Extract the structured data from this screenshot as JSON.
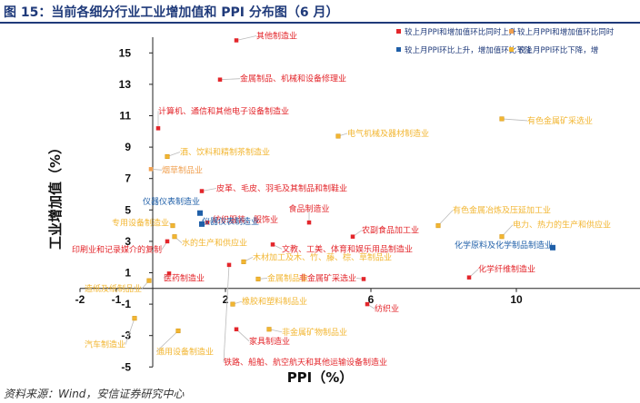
{
  "title": "图 15：当前各细分行业工业增加值和 PPI 分布图（6 月）",
  "source": "资料来源：Wind，安信证券研究中心",
  "chart_data": {
    "type": "scatter",
    "xlabel": "PPI（%）",
    "ylabel": "工业增加值（%）",
    "xlim": [
      -2,
      11
    ],
    "ylim": [
      -5,
      16
    ],
    "xticks": [
      -2,
      -1,
      2,
      6,
      10
    ],
    "yticks": [
      -5,
      -3,
      -1,
      1,
      3,
      5,
      7,
      9,
      11,
      13,
      15
    ],
    "legend_position": "top-right",
    "colors": {
      "red": "#e3262b",
      "orange": "#f0a050",
      "blue": "#1f5fa8",
      "yellow": "#f2b632",
      "leader": "#bbbbbb"
    },
    "series": [
      {
        "name": "较上月PPI和增加值环比同时上升",
        "color": "red"
      },
      {
        "name": "较上月PPI和增加值环比同时",
        "color": "orange"
      },
      {
        "name": "较上月PPI环比上升，增加值环比下降",
        "color": "blue"
      },
      {
        "name": "较上月PPI环比下降，增",
        "color": "yellow"
      }
    ],
    "points": [
      {
        "label": "其他制造业",
        "x": 2.3,
        "y": 15.8,
        "color": "red"
      },
      {
        "label": "金属制品、机械和设备修理业",
        "x": 1.85,
        "y": 13.3,
        "color": "red"
      },
      {
        "label": "计算机、通信和其他电子设备制造业",
        "x": 0.15,
        "y": 10.2,
        "color": "red"
      },
      {
        "label": "电气机械及器材制造业",
        "x": 5.1,
        "y": 9.7,
        "color": "yellow"
      },
      {
        "label": "有色金属矿采选业",
        "x": 9.6,
        "y": 10.8,
        "color": "yellow"
      },
      {
        "label": "酒、饮料和精制茶制造业",
        "x": 0.4,
        "y": 8.4,
        "color": "yellow"
      },
      {
        "label": "烟草制品业",
        "x": -0.05,
        "y": 7.6,
        "color": "orange"
      },
      {
        "label": "皮革、毛皮、羽毛及其制品和制鞋业",
        "x": 1.35,
        "y": 6.2,
        "color": "red"
      },
      {
        "label": "仪器仪表制造业",
        "x": 1.3,
        "y": 4.8,
        "color": "blue"
      },
      {
        "label": "纺织服装、服饰业",
        "x": 1.5,
        "y": 4.2,
        "color": "red"
      },
      {
        "label": "食品制造业",
        "x": 4.3,
        "y": 4.2,
        "color": "red"
      },
      {
        "label": "农副食品加工业",
        "x": 5.5,
        "y": 3.3,
        "color": "red"
      },
      {
        "label": "有色金属冶炼及压延加工业",
        "x": 7.85,
        "y": 4.0,
        "color": "yellow"
      },
      {
        "label": "电力、热力的生产和供应业",
        "x": 9.6,
        "y": 3.3,
        "color": "yellow"
      },
      {
        "label": "化学原料及化学制品制造业",
        "x": 11.0,
        "y": 2.6,
        "color": "blue"
      },
      {
        "label": "专用设备制造业",
        "x": 0.55,
        "y": 4.0,
        "color": "yellow"
      },
      {
        "label": "仪器仪表制造业",
        "x": 1.35,
        "y": 4.1,
        "color": "blue"
      },
      {
        "label": "印刷业和记录媒介的复制",
        "x": 0.4,
        "y": 3.0,
        "color": "red"
      },
      {
        "label": "水的生产和供应业",
        "x": 0.6,
        "y": 3.3,
        "color": "yellow"
      },
      {
        "label": "文教、工美、体育和娱乐用品制造业",
        "x": 3.3,
        "y": 2.8,
        "color": "red"
      },
      {
        "label": "木材加工及木、竹、藤、棕、草制品业",
        "x": 2.5,
        "y": 1.7,
        "color": "yellow"
      },
      {
        "label": "化学纤维制造业",
        "x": 8.7,
        "y": 0.7,
        "color": "red"
      },
      {
        "label": "非金属矿采选业",
        "x": 5.8,
        "y": 0.6,
        "color": "red"
      },
      {
        "label": "金属制品业",
        "x": 2.9,
        "y": 0.6,
        "color": "yellow"
      },
      {
        "label": "橡胶和塑料制品业",
        "x": 2.2,
        "y": -1.0,
        "color": "yellow"
      },
      {
        "label": "纺织业",
        "x": 5.9,
        "y": -1.0,
        "color": "red"
      },
      {
        "label": "铁路、船舶、航空航天和其他运输设备制造业",
        "x": 2.1,
        "y": 1.5,
        "color": "red"
      },
      {
        "label": "非金属矿物制品业",
        "x": 3.2,
        "y": -2.6,
        "color": "yellow"
      },
      {
        "label": "家具制造业",
        "x": 2.3,
        "y": -2.6,
        "color": "red"
      },
      {
        "label": "医药制造业",
        "x": 0.45,
        "y": 0.95,
        "color": "red"
      },
      {
        "label": "造纸及纸制品业",
        "x": -0.1,
        "y": 0.5,
        "color": "yellow"
      },
      {
        "label": "汽车制造业",
        "x": -0.5,
        "y": -1.9,
        "color": "yellow"
      },
      {
        "label": "通用设备制造业",
        "x": 0.7,
        "y": -2.7,
        "color": "yellow"
      }
    ]
  }
}
